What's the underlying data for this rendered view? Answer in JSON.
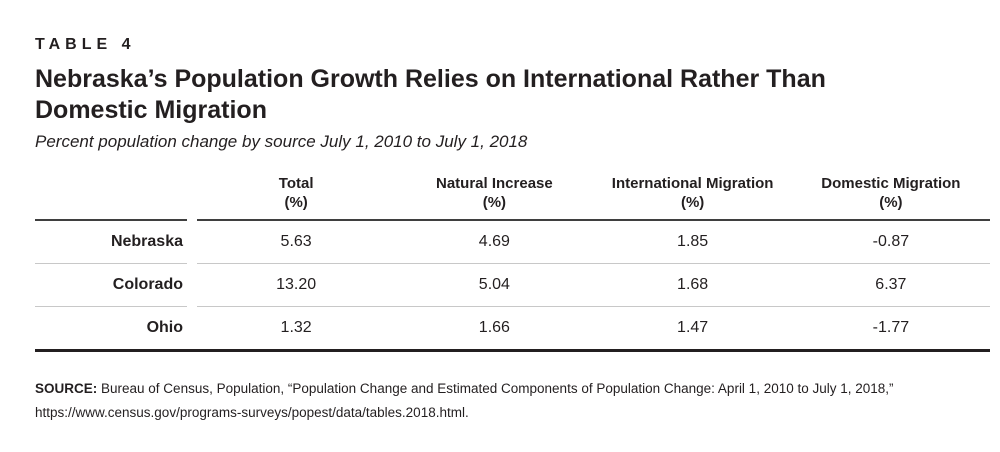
{
  "header": {
    "table_label": "TABLE 4",
    "title_line1": "Nebraska’s Population Growth Relies on International Rather Than",
    "title_line2": "Domestic Migration",
    "subtitle": "Percent population change by source July 1, 2010 to July 1, 2018"
  },
  "chart_data": {
    "type": "table",
    "title": "Nebraska’s Population Growth Relies on International Rather Than Domestic Migration",
    "subtitle": "Percent population change by source July 1, 2010 to July 1, 2018",
    "columns": [
      {
        "label": "Total",
        "unit": "(%)"
      },
      {
        "label": "Natural Increase",
        "unit": "(%)"
      },
      {
        "label": "International Migration",
        "unit": "(%)"
      },
      {
        "label": "Domestic Migration",
        "unit": "(%)"
      }
    ],
    "rows": [
      {
        "label": "Nebraska",
        "values": [
          "5.63",
          "4.69",
          "1.85",
          "-0.87"
        ]
      },
      {
        "label": "Colorado",
        "values": [
          "13.20",
          "5.04",
          "1.68",
          "6.37"
        ]
      },
      {
        "label": "Ohio",
        "values": [
          "1.32",
          "1.66",
          "1.47",
          "-1.77"
        ]
      }
    ]
  },
  "source": {
    "label": "SOURCE:",
    "text": " Bureau of Census, Population, “Population Change and Estimated Components of Population Change: April 1, 2010 to July 1, 2018,”",
    "url": "https://www.census.gov/programs-surveys/popest/data/tables.2018.html."
  },
  "colors": {
    "background": "#ffffff",
    "text": "#231f20",
    "header_rule": "#3f3f3f",
    "row_separator": "#c8c8c8",
    "bottom_rule": "#231f20"
  }
}
